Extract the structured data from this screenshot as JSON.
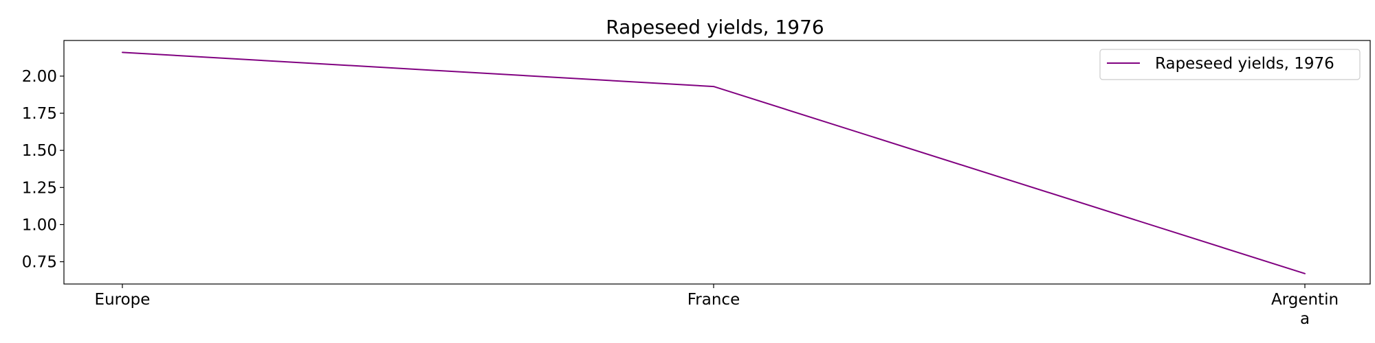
{
  "chart_data": {
    "type": "line",
    "title": "Rapeseed yields, 1976",
    "xlabel": "",
    "ylabel": "",
    "categories": [
      "Europe",
      "France",
      "Argentina"
    ],
    "category_display_lines": [
      [
        "Europe"
      ],
      [
        "France"
      ],
      [
        "Argentin",
        "a"
      ]
    ],
    "series": [
      {
        "name": "Rapeseed yields, 1976",
        "values": [
          2.16,
          1.93,
          0.67
        ],
        "color": "#800080"
      }
    ],
    "ylim": [
      0.6,
      2.24
    ],
    "yticks": [
      "0.75",
      "1.00",
      "1.25",
      "1.50",
      "1.75",
      "2.00"
    ],
    "grid": false,
    "legend_position": "top-right"
  }
}
